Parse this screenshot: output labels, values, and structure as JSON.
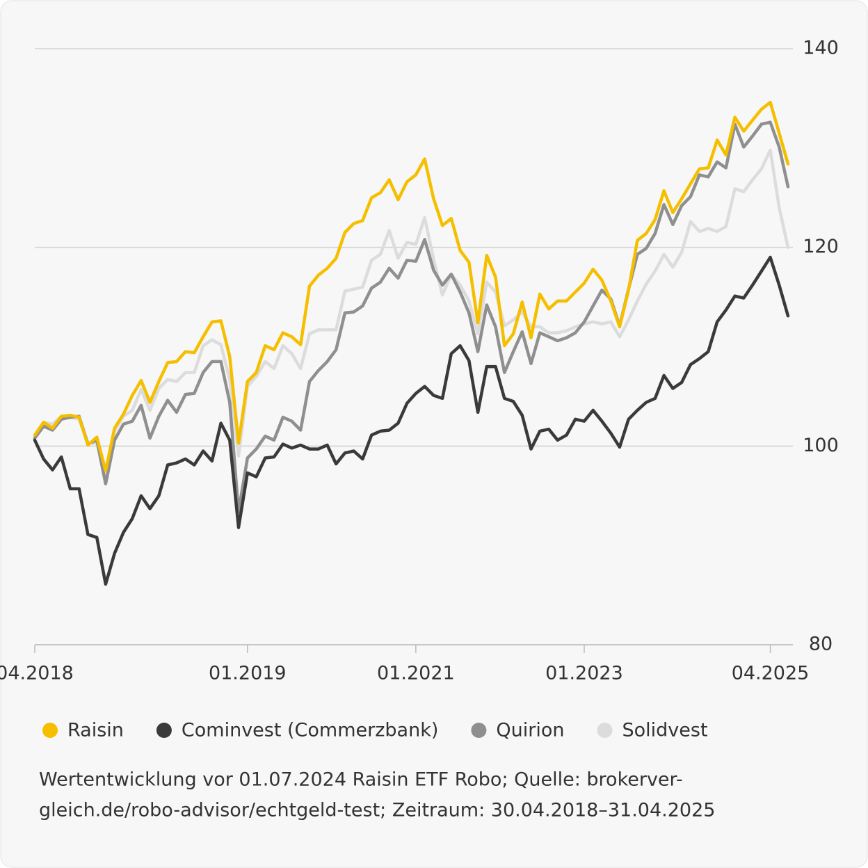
{
  "chart_data": {
    "type": "line",
    "categories": [
      "04.2018",
      null,
      null,
      null,
      null,
      null,
      null,
      null,
      null,
      null,
      null,
      null,
      null,
      null,
      null,
      null,
      null,
      null,
      null,
      null,
      null,
      null,
      null,
      null,
      "01.2019",
      null,
      null,
      null,
      null,
      null,
      null,
      null,
      null,
      null,
      null,
      null,
      null,
      null,
      null,
      null,
      null,
      null,
      null,
      "01.2021",
      null,
      null,
      null,
      null,
      null,
      null,
      null,
      null,
      null,
      null,
      null,
      null,
      null,
      null,
      null,
      null,
      null,
      null,
      "01.2023",
      null,
      null,
      null,
      null,
      null,
      null,
      null,
      null,
      null,
      null,
      null,
      null,
      null,
      null,
      null,
      null,
      null,
      null,
      null,
      null,
      "04.2025",
      null,
      null
    ],
    "series": [
      {
        "name": "Raisin",
        "color": "#f5bf00",
        "values": [
          101.1,
          102.4,
          101.8,
          103.0,
          103.1,
          102.9,
          100.1,
          100.9,
          97.5,
          101.8,
          103.2,
          105.1,
          106.6,
          104.4,
          106.5,
          108.4,
          108.5,
          109.5,
          109.4,
          111.0,
          112.5,
          112.6,
          109.0,
          100.3,
          106.5,
          107.4,
          110.1,
          109.7,
          111.4,
          111.0,
          110.2,
          116.1,
          117.2,
          117.9,
          118.9,
          121.5,
          122.4,
          122.7,
          125.0,
          125.5,
          126.8,
          124.8,
          126.6,
          127.3,
          128.9,
          124.9,
          122.2,
          122.9,
          119.7,
          118.5,
          112.4,
          119.2,
          117.0,
          110.1,
          111.3,
          114.5,
          110.9,
          115.3,
          113.8,
          114.6,
          114.6,
          115.5,
          116.4,
          117.8,
          116.7,
          114.6,
          112.0,
          115.7,
          120.7,
          121.4,
          122.8,
          125.7,
          123.5,
          124.9,
          126.4,
          127.9,
          128.0,
          130.8,
          129.3,
          133.1,
          131.7,
          132.8,
          133.9,
          134.6,
          131.5,
          128.4
        ]
      },
      {
        "name": "Cominvest (Commerzbank)",
        "color": "#3a3a3a",
        "values": [
          100.6,
          98.7,
          97.6,
          98.9,
          95.7,
          95.7,
          91.1,
          90.8,
          86.1,
          89.2,
          91.3,
          92.7,
          95.0,
          93.7,
          95.0,
          98.1,
          98.3,
          98.7,
          98.1,
          99.5,
          98.5,
          102.3,
          100.6,
          91.8,
          97.3,
          96.9,
          98.8,
          98.9,
          100.2,
          99.8,
          100.1,
          99.7,
          99.7,
          100.1,
          98.2,
          99.3,
          99.5,
          98.7,
          101.1,
          101.5,
          101.6,
          102.3,
          104.3,
          105.3,
          106.0,
          105.1,
          104.8,
          109.3,
          110.1,
          108.6,
          103.4,
          108.0,
          108.0,
          104.8,
          104.5,
          103.1,
          99.7,
          101.5,
          101.7,
          100.6,
          101.1,
          102.7,
          102.5,
          103.6,
          102.5,
          101.3,
          99.9,
          102.7,
          103.6,
          104.4,
          104.8,
          107.1,
          105.8,
          106.4,
          108.2,
          108.8,
          109.5,
          112.5,
          113.7,
          115.1,
          114.9,
          116.2,
          117.6,
          119.0,
          116.2,
          113.1
        ]
      },
      {
        "name": "Quirion",
        "color": "#8f8f8f",
        "values": [
          100.8,
          102.0,
          101.6,
          102.7,
          102.9,
          103.0,
          100.2,
          100.6,
          96.2,
          100.6,
          102.2,
          102.5,
          104.1,
          100.8,
          103.0,
          104.6,
          103.4,
          105.2,
          105.3,
          107.4,
          108.5,
          108.5,
          104.4,
          93.4,
          98.8,
          99.7,
          101.0,
          100.6,
          102.9,
          102.5,
          101.6,
          106.5,
          107.6,
          108.5,
          109.7,
          113.4,
          113.5,
          114.1,
          115.9,
          116.5,
          117.9,
          116.9,
          118.7,
          118.6,
          120.8,
          117.7,
          116.2,
          117.3,
          115.5,
          113.4,
          109.5,
          114.2,
          112.0,
          107.4,
          109.5,
          111.5,
          108.3,
          111.4,
          111.0,
          110.6,
          110.9,
          111.4,
          112.5,
          114.1,
          115.7,
          114.8,
          112.1,
          115.8,
          119.3,
          119.9,
          121.4,
          124.3,
          122.3,
          124.2,
          125.1,
          127.3,
          127.1,
          128.6,
          128.0,
          132.4,
          130.1,
          131.2,
          132.4,
          132.6,
          130.1,
          126.1
        ]
      },
      {
        "name": "Solidvest",
        "color": "#dcdcdc",
        "values": [
          101.1,
          102.4,
          102.2,
          103.0,
          102.9,
          102.7,
          100.3,
          100.3,
          97.1,
          101.5,
          103.0,
          103.6,
          105.7,
          103.6,
          105.8,
          106.7,
          106.5,
          107.4,
          107.4,
          110.1,
          110.7,
          110.2,
          106.7,
          99.0,
          106.0,
          107.0,
          108.5,
          107.8,
          110.1,
          109.3,
          107.8,
          111.3,
          111.7,
          111.7,
          111.7,
          115.6,
          115.8,
          116.0,
          118.7,
          119.3,
          121.7,
          118.9,
          120.5,
          120.3,
          123.0,
          118.8,
          115.2,
          117.3,
          116.2,
          114.6,
          111.3,
          116.5,
          115.5,
          112.1,
          112.7,
          113.5,
          112.0,
          112.0,
          111.4,
          111.4,
          111.6,
          112.0,
          112.3,
          112.5,
          112.3,
          112.5,
          111.0,
          112.7,
          114.6,
          116.3,
          117.6,
          119.3,
          118.0,
          119.5,
          122.6,
          121.6,
          121.9,
          121.6,
          122.1,
          125.9,
          125.6,
          126.8,
          127.9,
          129.8,
          124.0,
          120.0
        ]
      }
    ],
    "ylim": [
      80,
      140
    ],
    "yticks": [
      80,
      100,
      120,
      140
    ],
    "grid": true,
    "footnote": [
      "Wertentwicklung vor 01.07.2024 Raisin ETF Robo; Quelle: brokerver-",
      "gleich.de/robo-advisor/echtgeld-test; Zeitraum: 30.04.2018–31.04.2025"
    ]
  }
}
